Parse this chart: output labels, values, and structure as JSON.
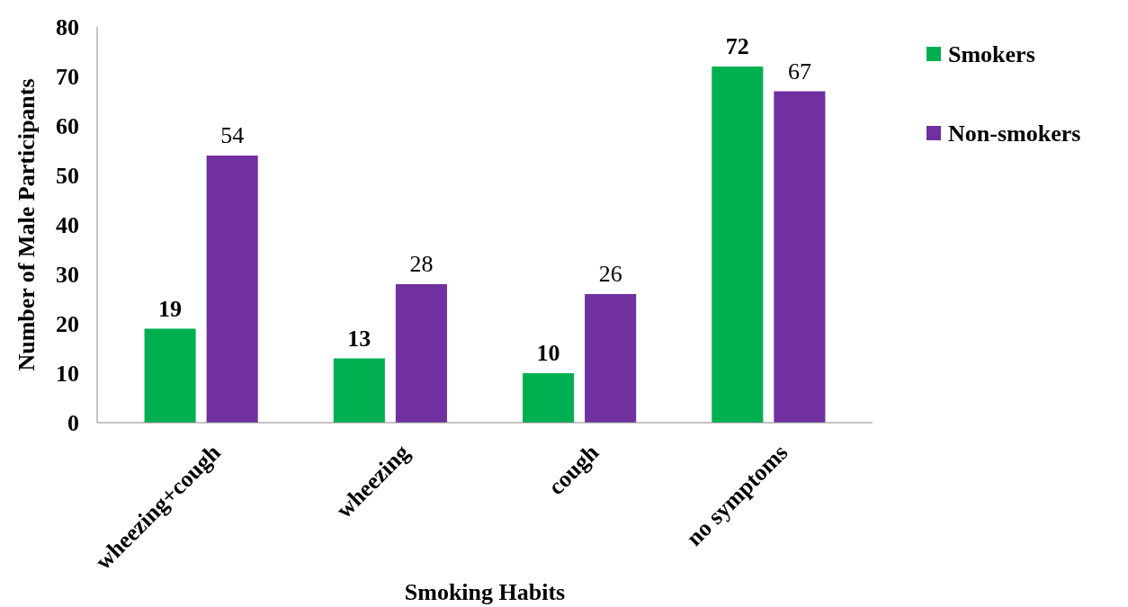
{
  "chart_data": {
    "type": "bar",
    "xlabel": "Smoking Habits",
    "ylabel": "Number of Male Participants",
    "categories": [
      "wheezing+cough",
      "wheezing",
      "cough",
      "no symptoms"
    ],
    "series": [
      {
        "name": "Smokers",
        "color": "#00b050",
        "values": [
          19,
          13,
          10,
          72
        ]
      },
      {
        "name": "Non-smokers",
        "color": "#7030a0",
        "values": [
          54,
          28,
          26,
          67
        ]
      }
    ],
    "ylim": [
      0,
      80
    ],
    "yticks": [
      0,
      10,
      20,
      30,
      40,
      50,
      60,
      70,
      80
    ],
    "grid": false,
    "legend": "top right",
    "data_labels": true
  }
}
